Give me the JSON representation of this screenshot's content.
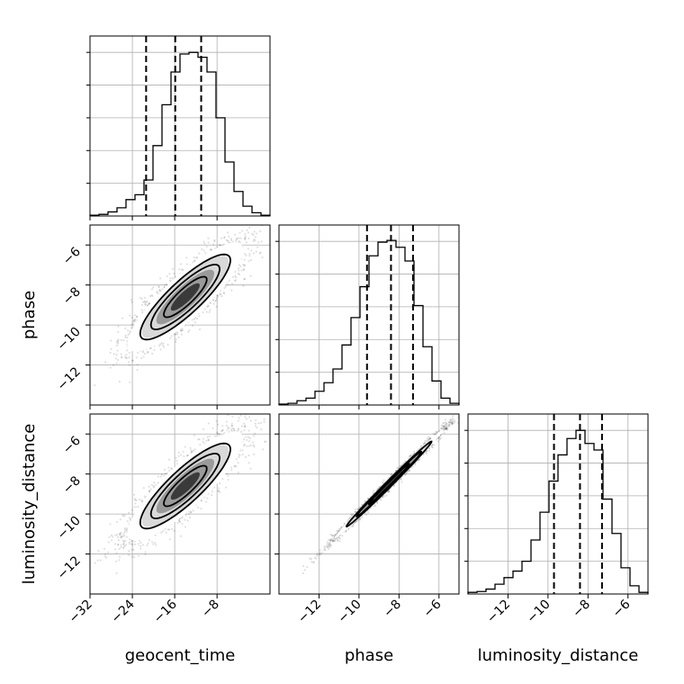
{
  "chart_data": {
    "type": "corner",
    "parameters": [
      "geocent_time",
      "phase",
      "luminosity_distance"
    ],
    "axis_labels": {
      "x": [
        "geocent_time",
        "phase",
        "luminosity_distance"
      ],
      "y": [
        "",
        "phase",
        "luminosity_distance"
      ]
    },
    "ranges": {
      "geocent_time": [
        -32,
        2
      ],
      "phase": [
        -14,
        -5
      ],
      "luminosity_distance": [
        -14,
        -5
      ]
    },
    "ticks": {
      "geocent_time": [
        -32,
        -24,
        -16,
        -8
      ],
      "phase": [
        -12,
        -10,
        -8,
        -6
      ],
      "luminosity_distance": [
        -12,
        -10,
        -8,
        -6
      ]
    },
    "tick_labels": {
      "geocent_time": [
        "−32",
        "−24",
        "−16",
        "−8"
      ],
      "phase": [
        "−12",
        "−10",
        "−8",
        "−6"
      ],
      "luminosity_distance": [
        "−12",
        "−10",
        "−8",
        "−6"
      ]
    },
    "histograms": [
      {
        "parameter": "geocent_time",
        "bin_edges": [
          -32,
          -30.3,
          -28.6,
          -26.9,
          -25.2,
          -23.5,
          -21.8,
          -20.1,
          -18.4,
          -16.7,
          -15,
          -13.3,
          -11.6,
          -9.9,
          -8.2,
          -6.5,
          -4.8,
          -3.1,
          -1.4,
          0.3,
          2
        ],
        "counts": [
          0.5,
          1,
          2.5,
          5,
          10,
          13,
          22,
          43,
          68,
          88,
          99,
          100,
          97,
          88,
          60,
          33,
          15,
          6,
          2,
          0.5
        ],
        "quantiles": [
          -21.4,
          -15.9,
          -11.0
        ],
        "ylim": [
          0,
          110
        ]
      },
      {
        "parameter": "phase",
        "bin_edges": [
          -14,
          -13.55,
          -13.1,
          -12.65,
          -12.2,
          -11.75,
          -11.3,
          -10.85,
          -10.4,
          -9.95,
          -9.5,
          -9.05,
          -8.6,
          -8.15,
          -7.7,
          -7.25,
          -6.8,
          -6.35,
          -5.9,
          -5.45,
          -5
        ],
        "counts": [
          0.5,
          1,
          2.5,
          4,
          8,
          13,
          21,
          35,
          51,
          69,
          87,
          95,
          96,
          92,
          84,
          58,
          34,
          14,
          4,
          1
        ],
        "quantiles": [
          -9.6,
          -8.4,
          -7.3
        ],
        "ylim": [
          0,
          105
        ]
      },
      {
        "parameter": "luminosity_distance",
        "bin_edges": [
          -14,
          -13.55,
          -13.1,
          -12.65,
          -12.2,
          -11.75,
          -11.3,
          -10.85,
          -10.4,
          -9.95,
          -9.5,
          -9.05,
          -8.6,
          -8.15,
          -7.7,
          -7.25,
          -6.8,
          -6.35,
          -5.9,
          -5.45,
          -5
        ],
        "counts": [
          1,
          1.5,
          3,
          6,
          10,
          14,
          20,
          33,
          50,
          69,
          85,
          95,
          100,
          92,
          88,
          58,
          37,
          16,
          5,
          1
        ],
        "quantiles": [
          -9.7,
          -8.4,
          -7.3
        ],
        "ylim": [
          0,
          110
        ]
      }
    ],
    "joint_distributions": [
      {
        "x": "geocent_time",
        "y": "phase",
        "mean": [
          -14,
          -8.6
        ],
        "sd": [
          5.2,
          1.3
        ],
        "corr": 0.86,
        "n": 3000,
        "contour_sigmas": [
          1,
          1.6,
          2.1
        ]
      },
      {
        "x": "geocent_time",
        "y": "luminosity_distance",
        "mean": [
          -14,
          -8.6
        ],
        "sd": [
          5.2,
          1.3
        ],
        "corr": 0.86,
        "n": 3000,
        "contour_sigmas": [
          1,
          1.6,
          2.1
        ]
      },
      {
        "x": "phase",
        "y": "luminosity_distance",
        "mean": [
          -8.5,
          -8.5
        ],
        "sd": [
          1.3,
          1.3
        ],
        "corr": 0.995,
        "n": 3000,
        "contour_sigmas": [
          1,
          1.6,
          2.1
        ]
      }
    ],
    "grid": true,
    "colors": {
      "line": "#000000",
      "density": "#000000"
    }
  }
}
